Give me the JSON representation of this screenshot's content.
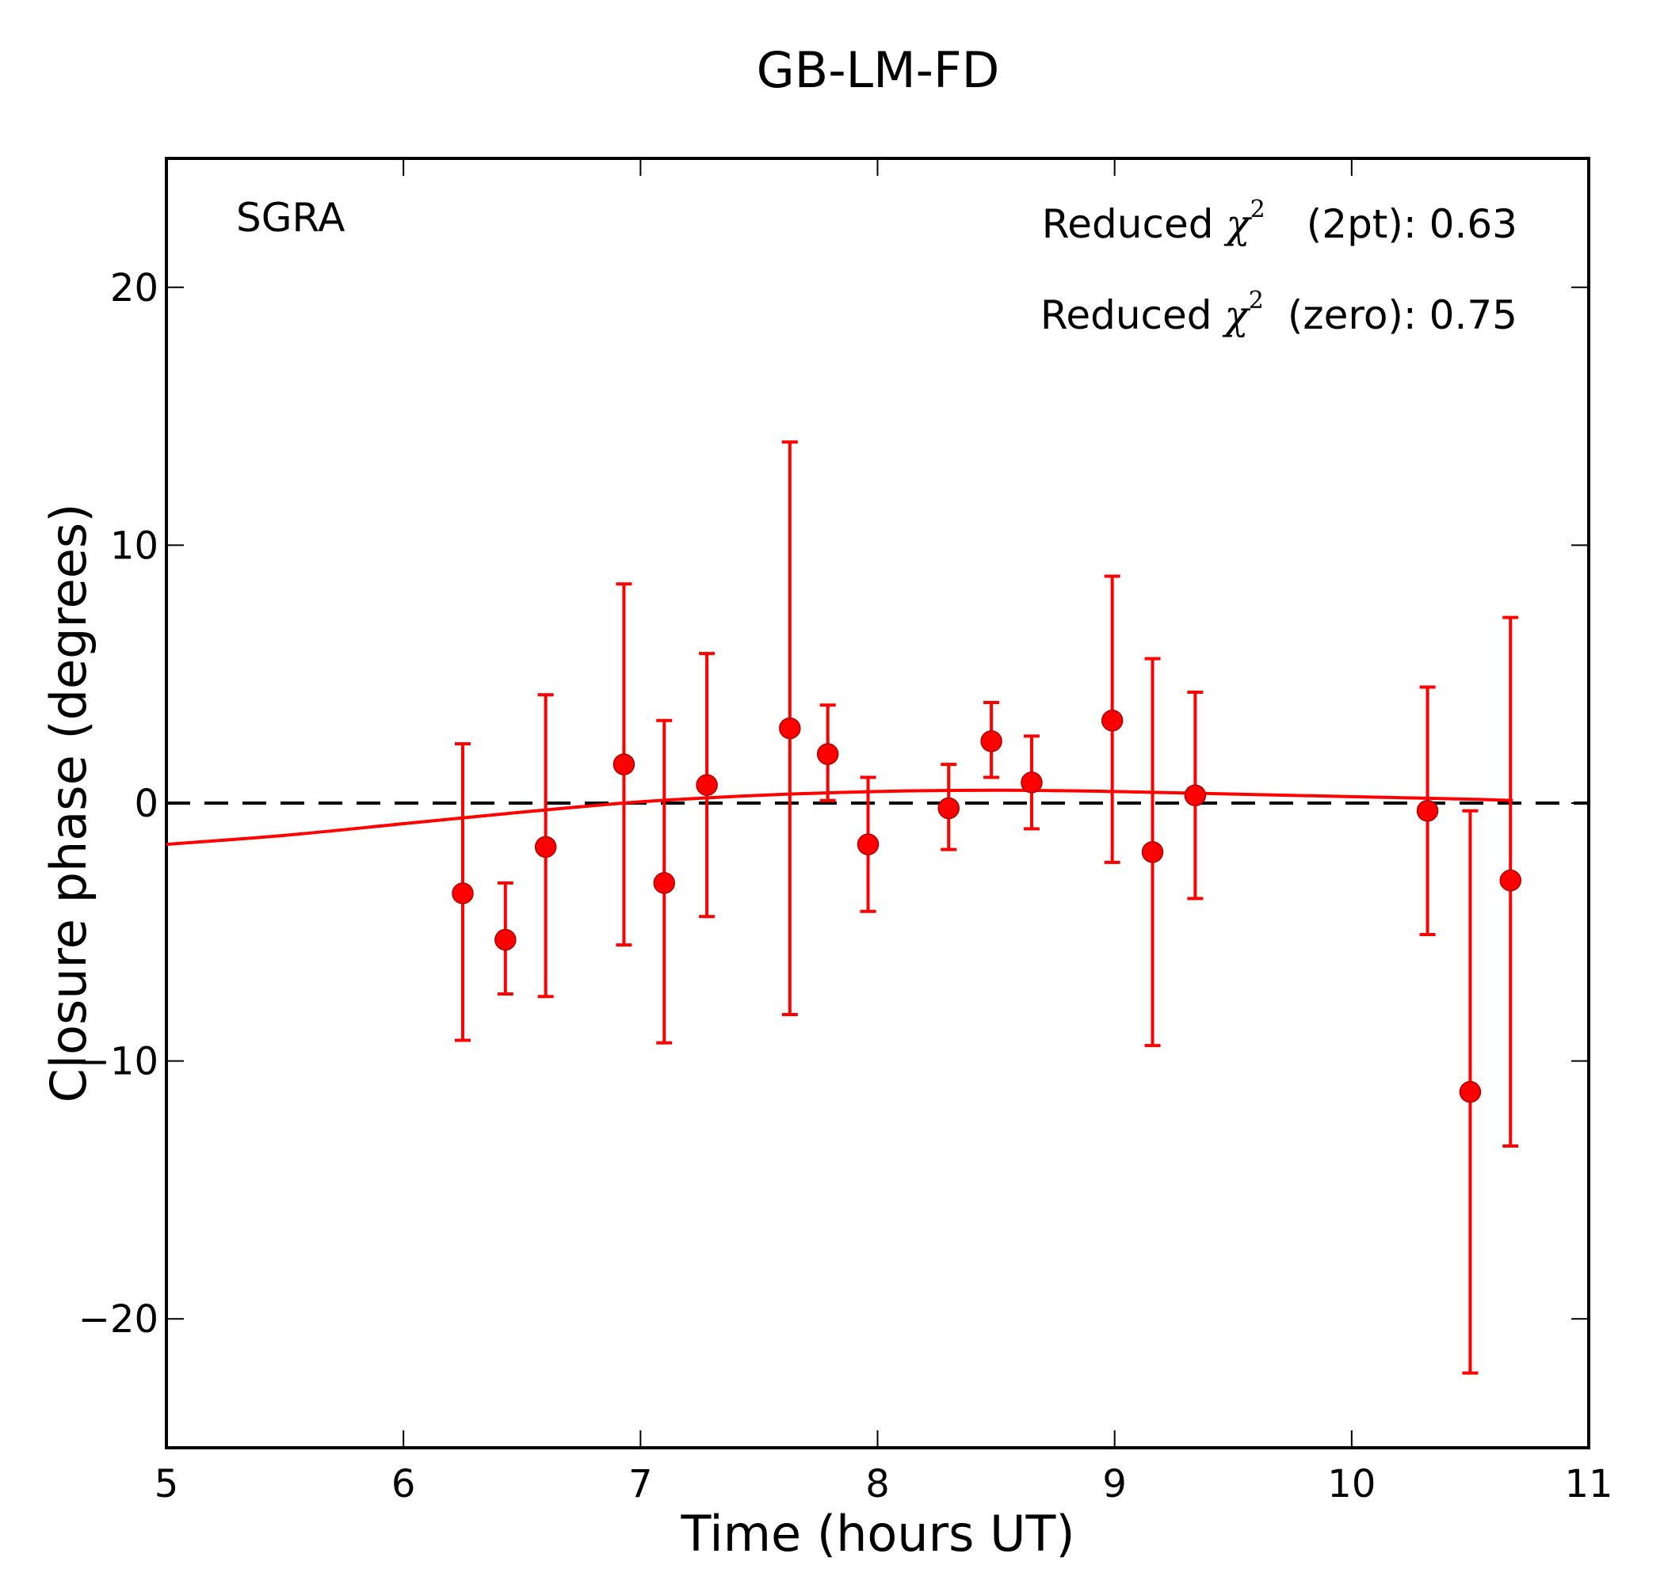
{
  "chart_data": {
    "type": "scatter",
    "title": "GB-LM-FD",
    "xlabel": "Time (hours UT)",
    "ylabel": "Closure phase (degrees)",
    "xlim": [
      5,
      11
    ],
    "ylim": [
      -25,
      25
    ],
    "xticks": [
      5,
      6,
      7,
      8,
      9,
      10,
      11
    ],
    "xtick_labels": [
      "5",
      "6",
      "7",
      "8",
      "9",
      "10",
      "11"
    ],
    "yticks": [
      20,
      10,
      0,
      -10,
      -20
    ],
    "ytick_labels": [
      "20",
      "10",
      "0",
      "−10",
      "−20"
    ],
    "grid": false,
    "source_label": "SGRA",
    "annotations": [
      {
        "prefix": "Reduced ",
        "symbol": "χ",
        "superscript": "2",
        "suffix": "(2pt): 0.63"
      },
      {
        "prefix": "Reduced ",
        "symbol": "χ",
        "superscript": "2",
        "suffix": "(zero): 0.75"
      }
    ],
    "zero_line": {
      "y": 0,
      "style": "dashed",
      "color": "#000000"
    },
    "series": [
      {
        "name": "closure phase",
        "color": "#ff0000",
        "points": [
          {
            "x": 6.25,
            "y": -3.5,
            "err_low": -9.2,
            "err_high": 2.3
          },
          {
            "x": 6.43,
            "y": -5.3,
            "err_low": -7.4,
            "err_high": -3.1
          },
          {
            "x": 6.6,
            "y": -1.7,
            "err_low": -7.5,
            "err_high": 4.2
          },
          {
            "x": 6.93,
            "y": 1.5,
            "err_low": -5.5,
            "err_high": 8.5
          },
          {
            "x": 7.1,
            "y": -3.1,
            "err_low": -9.3,
            "err_high": 3.2
          },
          {
            "x": 7.28,
            "y": 0.7,
            "err_low": -4.4,
            "err_high": 5.8
          },
          {
            "x": 7.63,
            "y": 2.9,
            "err_low": -8.2,
            "err_high": 14.0
          },
          {
            "x": 7.79,
            "y": 1.9,
            "err_low": 0.1,
            "err_high": 3.8
          },
          {
            "x": 7.96,
            "y": -1.6,
            "err_low": -4.2,
            "err_high": 1.0
          },
          {
            "x": 8.3,
            "y": -0.2,
            "err_low": -1.8,
            "err_high": 1.5
          },
          {
            "x": 8.48,
            "y": 2.4,
            "err_low": 1.0,
            "err_high": 3.9
          },
          {
            "x": 8.65,
            "y": 0.8,
            "err_low": -1.0,
            "err_high": 2.6
          },
          {
            "x": 8.99,
            "y": 3.2,
            "err_low": -2.3,
            "err_high": 8.8
          },
          {
            "x": 9.16,
            "y": -1.9,
            "err_low": -9.4,
            "err_high": 5.6
          },
          {
            "x": 9.34,
            "y": 0.3,
            "err_low": -3.7,
            "err_high": 4.3
          },
          {
            "x": 10.32,
            "y": -0.3,
            "err_low": -5.1,
            "err_high": 4.5
          },
          {
            "x": 10.5,
            "y": -11.2,
            "err_low": -22.1,
            "err_high": -0.3
          },
          {
            "x": 10.67,
            "y": -3.0,
            "err_low": -13.3,
            "err_high": 7.2
          }
        ]
      },
      {
        "name": "model fit",
        "type": "line",
        "color": "#ff0000",
        "x": [
          5.0,
          5.5,
          6.0,
          6.5,
          7.0,
          7.5,
          8.0,
          8.5,
          9.0,
          9.5,
          10.0,
          10.5,
          10.68
        ],
        "y": [
          -1.6,
          -1.25,
          -0.8,
          -0.35,
          0.05,
          0.3,
          0.45,
          0.5,
          0.45,
          0.35,
          0.25,
          0.15,
          0.1
        ]
      }
    ]
  }
}
